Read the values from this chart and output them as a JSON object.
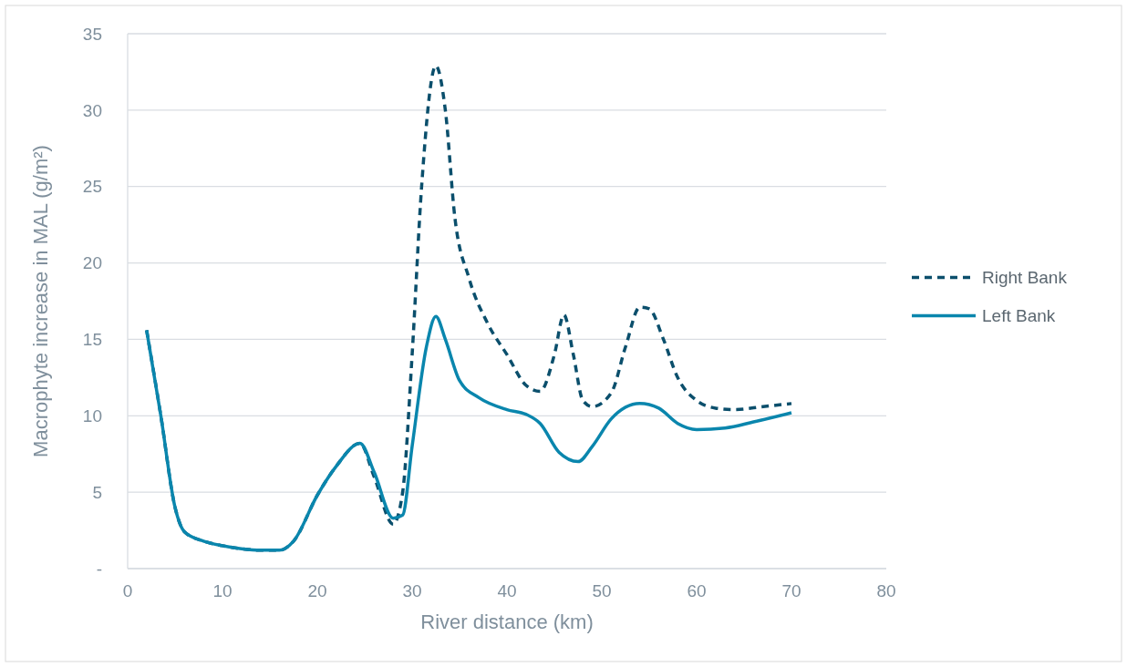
{
  "chart_data": {
    "type": "line",
    "xlabel": "River distance (km)",
    "ylabel": "Macrophyte increase in MAL (g/m²)",
    "xlim": [
      0,
      80
    ],
    "xticks": [
      0,
      10,
      20,
      30,
      40,
      50,
      60,
      70,
      80
    ],
    "ylim": [
      0,
      35
    ],
    "yticks": [
      {
        "value": 0,
        "label": "-"
      },
      5,
      10,
      15,
      20,
      25,
      30,
      35
    ],
    "grid": "y",
    "legend": "right",
    "series": [
      {
        "name": "Right Bank",
        "color": "#0b4f6c",
        "line_style": "dashed",
        "x": [
          2,
          3.5,
          5,
          6,
          8,
          10,
          12,
          14,
          16,
          17.5,
          20,
          22,
          24.5,
          26,
          28,
          29,
          30,
          31,
          32.5,
          33.5,
          34.5,
          36,
          38,
          40,
          42,
          43.5,
          45,
          46,
          47,
          48,
          49,
          51,
          52.5,
          54,
          55,
          56.5,
          58,
          60,
          62,
          64,
          67,
          70
        ],
        "values": [
          15.6,
          10,
          4,
          2.4,
          1.8,
          1.5,
          1.3,
          1.2,
          1.2,
          1.8,
          4.8,
          6.7,
          8.2,
          6,
          2.9,
          5,
          14,
          25,
          32.9,
          30,
          23,
          19,
          16,
          14,
          12,
          11.6,
          14,
          16.6,
          14,
          11,
          10.6,
          11.5,
          14.5,
          17.1,
          17,
          15,
          12.5,
          11,
          10.5,
          10.4,
          10.6,
          10.8
        ]
      },
      {
        "name": "Left Bank",
        "color": "#0a86ad",
        "line_style": "solid",
        "x": [
          2,
          3.5,
          5,
          6,
          8,
          10,
          12,
          14,
          16,
          17.5,
          20,
          22,
          24.5,
          26,
          28,
          29,
          30,
          31.5,
          32.5,
          33.5,
          35,
          37,
          40,
          42,
          43.5,
          45.5,
          47.5,
          49,
          51,
          54,
          56,
          58,
          60,
          63,
          66,
          70
        ],
        "values": [
          15.6,
          10,
          4,
          2.4,
          1.8,
          1.5,
          1.3,
          1.2,
          1.2,
          1.8,
          4.8,
          6.7,
          8.2,
          6.3,
          3.3,
          3.5,
          8,
          14.5,
          16.5,
          15,
          12.3,
          11.2,
          10.4,
          10.1,
          9.5,
          7.6,
          7,
          8,
          9.8,
          10.8,
          10.5,
          9.5,
          9.1,
          9.2,
          9.6,
          10.2
        ]
      }
    ]
  }
}
